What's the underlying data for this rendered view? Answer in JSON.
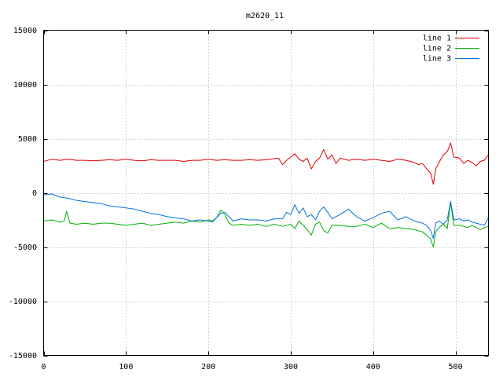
{
  "chart_data": {
    "type": "line",
    "title": "m2620_11",
    "xlabel": "",
    "ylabel": "",
    "xlim": [
      0,
      540
    ],
    "ylim": [
      -15000,
      15000
    ],
    "xticks": [
      0,
      100,
      200,
      300,
      400,
      500
    ],
    "yticks": [
      -15000,
      -10000,
      -5000,
      0,
      5000,
      10000,
      15000
    ],
    "xtick_labels": [
      "0",
      "100",
      "200",
      "300",
      "400",
      "500"
    ],
    "ytick_labels": [
      "-15000",
      "-10000",
      "-5000",
      "0",
      "5000",
      "10000",
      "15000"
    ],
    "grid": true,
    "legend_position": "top-right",
    "series": [
      {
        "name": "line 1",
        "color": "#e00000",
        "x": [
          0,
          10,
          20,
          30,
          40,
          50,
          60,
          70,
          80,
          90,
          100,
          110,
          120,
          130,
          140,
          150,
          160,
          170,
          180,
          190,
          200,
          210,
          220,
          230,
          240,
          250,
          260,
          270,
          280,
          285,
          290,
          295,
          300,
          305,
          310,
          315,
          320,
          325,
          330,
          335,
          340,
          345,
          350,
          355,
          360,
          370,
          380,
          390,
          400,
          410,
          420,
          430,
          440,
          450,
          455,
          460,
          465,
          470,
          473,
          476,
          480,
          485,
          490,
          494,
          498,
          505,
          510,
          515,
          520,
          525,
          530,
          535,
          540
        ],
        "y": [
          2900,
          3100,
          3000,
          3100,
          3000,
          3000,
          2950,
          3000,
          3050,
          3000,
          3100,
          3000,
          2950,
          3050,
          3000,
          3000,
          3000,
          2900,
          3000,
          3000,
          3100,
          3000,
          3050,
          3000,
          3000,
          3050,
          3000,
          3050,
          3150,
          3200,
          2600,
          3000,
          3300,
          3600,
          3100,
          2900,
          3200,
          2200,
          2900,
          3200,
          4000,
          3100,
          3500,
          2700,
          3200,
          3000,
          3100,
          3000,
          3100,
          3000,
          2900,
          3100,
          3000,
          2800,
          2600,
          2700,
          2200,
          1800,
          800,
          2200,
          2800,
          3500,
          3800,
          4600,
          3300,
          3200,
          2700,
          3000,
          2800,
          2500,
          2900,
          3000,
          3500
        ]
      },
      {
        "name": "line 2",
        "color": "#00b000",
        "x": [
          0,
          10,
          20,
          25,
          28,
          32,
          40,
          50,
          60,
          70,
          80,
          90,
          100,
          110,
          120,
          130,
          140,
          150,
          160,
          170,
          180,
          190,
          200,
          205,
          210,
          215,
          220,
          225,
          230,
          240,
          250,
          260,
          270,
          280,
          290,
          300,
          305,
          310,
          315,
          320,
          325,
          330,
          335,
          340,
          345,
          350,
          360,
          370,
          380,
          390,
          400,
          410,
          420,
          430,
          440,
          450,
          460,
          465,
          470,
          473,
          476,
          480,
          485,
          490,
          494,
          498,
          505,
          510,
          515,
          520,
          525,
          530,
          535,
          540
        ],
        "y": [
          -2600,
          -2500,
          -2700,
          -2600,
          -1700,
          -2800,
          -2900,
          -2800,
          -2900,
          -2800,
          -2800,
          -2900,
          -3000,
          -2900,
          -2800,
          -3000,
          -2900,
          -2800,
          -2700,
          -2800,
          -2600,
          -2700,
          -2500,
          -2600,
          -2300,
          -1600,
          -2000,
          -2800,
          -3000,
          -2900,
          -3000,
          -2900,
          -3100,
          -2900,
          -3100,
          -2900,
          -3300,
          -2600,
          -3000,
          -3400,
          -3900,
          -2900,
          -2700,
          -3500,
          -3700,
          -3000,
          -3000,
          -3100,
          -3100,
          -2900,
          -3200,
          -2800,
          -3300,
          -3200,
          -3300,
          -3400,
          -3600,
          -3900,
          -4300,
          -5000,
          -3600,
          -3200,
          -2900,
          -3300,
          -900,
          -3000,
          -3000,
          -3100,
          -3200,
          -3000,
          -3200,
          -3400,
          -3200,
          -3100
        ]
      },
      {
        "name": "line 3",
        "color": "#0070e0",
        "x": [
          0,
          10,
          20,
          30,
          40,
          50,
          60,
          70,
          80,
          90,
          100,
          110,
          120,
          130,
          140,
          150,
          160,
          170,
          180,
          190,
          200,
          205,
          210,
          215,
          220,
          230,
          240,
          250,
          260,
          270,
          280,
          290,
          295,
          300,
          305,
          310,
          315,
          320,
          325,
          330,
          335,
          340,
          345,
          350,
          360,
          370,
          380,
          390,
          400,
          410,
          420,
          430,
          440,
          450,
          460,
          465,
          470,
          473,
          476,
          480,
          485,
          490,
          494,
          498,
          505,
          510,
          515,
          520,
          525,
          530,
          535,
          540
        ],
        "y": [
          -200,
          -100,
          -400,
          -500,
          -700,
          -800,
          -900,
          -1000,
          -1200,
          -1300,
          -1400,
          -1500,
          -1700,
          -1900,
          -2000,
          -2200,
          -2300,
          -2400,
          -2600,
          -2500,
          -2600,
          -2700,
          -2300,
          -1900,
          -1800,
          -2600,
          -2400,
          -2500,
          -2500,
          -2600,
          -2400,
          -2400,
          -1800,
          -2000,
          -1100,
          -1900,
          -1400,
          -2200,
          -2000,
          -2500,
          -1700,
          -1300,
          -1800,
          -2400,
          -2000,
          -1500,
          -2200,
          -2600,
          -2300,
          -1900,
          -1700,
          -2500,
          -2200,
          -2600,
          -2800,
          -3000,
          -3500,
          -4200,
          -2800,
          -2600,
          -2900,
          -2500,
          -800,
          -2500,
          -2400,
          -2600,
          -2500,
          -2700,
          -2800,
          -2900,
          -3000,
          -2300
        ]
      }
    ]
  }
}
